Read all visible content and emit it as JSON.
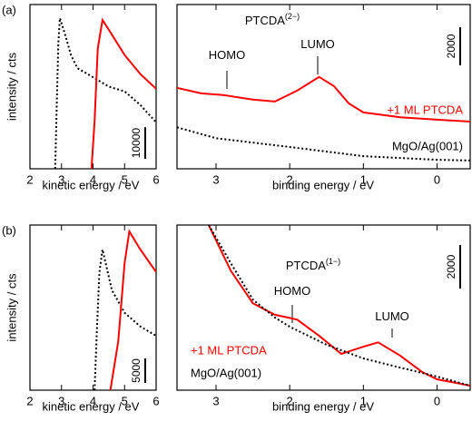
{
  "chart_data": [
    {
      "type": "line",
      "label": "(a)",
      "ylabel": "intensity / cts",
      "xlabel": "kinetic energy / eV",
      "xlim": [
        2,
        6
      ],
      "xticks": [
        2,
        3,
        4,
        5,
        6
      ],
      "ylim": [
        0,
        52000
      ],
      "scale_bar": 10000,
      "series": [
        {
          "color": "#000000",
          "dash": true,
          "x": [
            2.8,
            2.85,
            2.9,
            2.95,
            3.1,
            3.3,
            3.5,
            4.0,
            4.5,
            5.0,
            5.5,
            6.0
          ],
          "values": [
            0,
            20000,
            40000,
            47700,
            43000,
            36000,
            31900,
            29000,
            26000,
            24500,
            20200,
            14700
          ]
        },
        {
          "color": "#ff0000",
          "dash": false,
          "x": [
            3.95,
            4.05,
            4.15,
            4.3,
            4.5,
            5.0,
            5.5,
            6.0
          ],
          "values": [
            0,
            15000,
            38000,
            47100,
            44000,
            36000,
            30000,
            25300
          ]
        }
      ]
    },
    {
      "type": "line",
      "xlabel": "binding energy / eV",
      "xlim": [
        3.53,
        -0.45
      ],
      "xticks": [
        3,
        2,
        1,
        0
      ],
      "ylim": [
        0,
        8600
      ],
      "scale_bar": 2000,
      "annotations": [
        {
          "text": "PTCDA",
          "sup": "(2−)"
        },
        {
          "text": "HOMO"
        },
        {
          "text": "LUMO"
        }
      ],
      "series": [
        {
          "name": "+1 ML PTCDA",
          "color": "#ff0000",
          "dash": false,
          "x": [
            3.53,
            3.2,
            2.9,
            2.5,
            2.2,
            1.9,
            1.6,
            1.4,
            1.2,
            1.0,
            0.5,
            0.0,
            -0.45
          ],
          "values": [
            4240,
            3950,
            3860,
            3620,
            3520,
            4090,
            4810,
            4330,
            3430,
            2950,
            2700,
            2570,
            2470
          ]
        },
        {
          "name": "MgO/Ag(001)",
          "color": "#000000",
          "dash": true,
          "x": [
            3.53,
            3.0,
            2.0,
            1.0,
            0.0,
            -0.45
          ],
          "values": [
            2170,
            1600,
            1140,
            660,
            470,
            430
          ]
        }
      ]
    },
    {
      "type": "line",
      "label": "(b)",
      "ylabel": "intensity / cts",
      "xlabel": "kinetic energy / eV",
      "xlim": [
        2,
        6
      ],
      "xticks": [
        2,
        3,
        4,
        5,
        6
      ],
      "ylim": [
        0,
        33700
      ],
      "scale_bar": 5000,
      "series": [
        {
          "color": "#000000",
          "dash": true,
          "x": [
            4.05,
            4.12,
            4.2,
            4.3,
            4.6,
            5.0,
            5.5,
            6.0
          ],
          "values": [
            0,
            12000,
            24000,
            28700,
            20400,
            15800,
            13000,
            11100
          ]
        },
        {
          "color": "#ff0000",
          "dash": false,
          "x": [
            4.55,
            4.8,
            5.0,
            5.15,
            5.5,
            6.0
          ],
          "values": [
            0,
            10000,
            26000,
            32400,
            28700,
            24100
          ]
        }
      ]
    },
    {
      "type": "line",
      "xlabel": "binding energy / eV",
      "xlim": [
        3.53,
        -0.45
      ],
      "xticks": [
        3,
        2,
        1,
        0
      ],
      "ylim": [
        0,
        7600
      ],
      "scale_bar": 2000,
      "annotations": [
        {
          "text": "PTCDA",
          "sup": "(1−)"
        },
        {
          "text": "HOMO"
        },
        {
          "text": "LUMO"
        }
      ],
      "series": [
        {
          "name": "+1 ML PTCDA",
          "color": "#ff0000",
          "dash": false,
          "x": [
            3.1,
            2.8,
            2.5,
            2.2,
            1.9,
            1.6,
            1.3,
            1.0,
            0.8,
            0.5,
            0.2,
            0.0,
            -0.45
          ],
          "values": [
            7600,
            5500,
            4000,
            3470,
            3250,
            2500,
            1670,
            2000,
            2200,
            1590,
            835,
            500,
            210
          ]
        },
        {
          "name": "MgO/Ag(001)",
          "color": "#000000",
          "dash": true,
          "x": [
            3.1,
            2.8,
            2.5,
            2.2,
            2.0,
            1.5,
            1.0,
            0.5,
            0.0,
            -0.45
          ],
          "values": [
            7600,
            5850,
            4170,
            3340,
            2920,
            2090,
            1460,
            1040,
            625,
            210
          ]
        }
      ]
    }
  ]
}
